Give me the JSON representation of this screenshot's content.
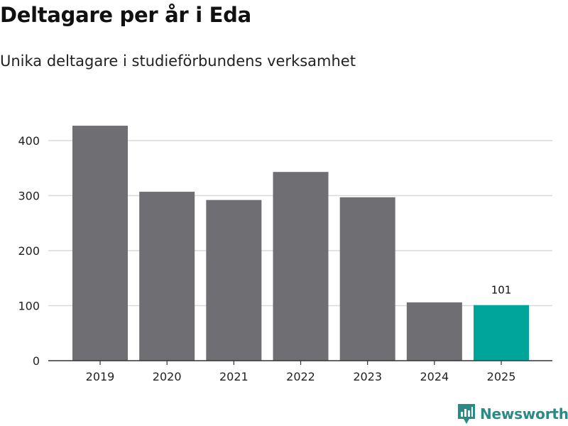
{
  "header": {
    "title": "Deltagare per år i Eda",
    "subtitle": "Unika deltagare i studieförbundens verksamhet"
  },
  "brand": {
    "name": "Newsworthy",
    "color": "#2a8a88",
    "icon": "newsworthy-logo-icon"
  },
  "colors": {
    "bar": "#6f6e73",
    "highlight": "#00a599",
    "grid": "#d9d9d9",
    "axis": "#333333"
  },
  "chart_data": {
    "type": "bar",
    "title": "Deltagare per år i Eda",
    "subtitle": "Unika deltagare i studieförbundens verksamhet",
    "categories": [
      "2019",
      "2020",
      "2021",
      "2022",
      "2023",
      "2024",
      "2025"
    ],
    "values": [
      427,
      307,
      292,
      343,
      297,
      106,
      101
    ],
    "highlight_index": 6,
    "data_labels": [
      {
        "index": 6,
        "text": "101"
      }
    ],
    "yticks": [
      0,
      100,
      200,
      300,
      400
    ],
    "ylim": [
      0,
      430
    ],
    "xlabel": "",
    "ylabel": "",
    "grid": true,
    "legend": "none"
  }
}
